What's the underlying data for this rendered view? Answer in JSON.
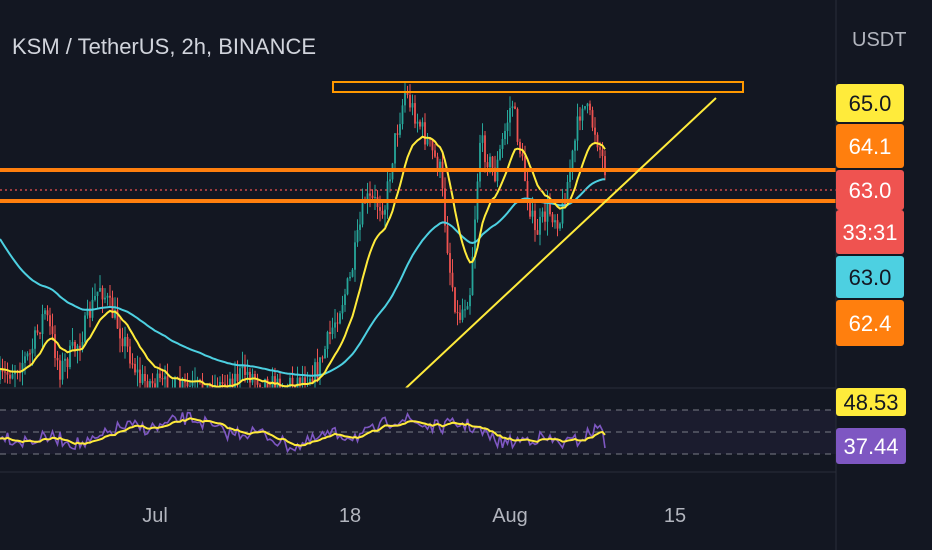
{
  "header": {
    "symbol_title": "KSM / TetherUS, 2h, BINANCE",
    "currency": "USDT"
  },
  "colors": {
    "background": "#131722",
    "candle_up": "#26a69a",
    "candle_down": "#ef5350",
    "ema_fast": "#ffeb3b",
    "ema_slow": "#4dd0e1",
    "zone": "#ff7f0e",
    "trendline": "#ffeb3b",
    "rsi_line": "#7e57c2",
    "rsi_ma": "#ffeb3b"
  },
  "chart_data": [
    {
      "type": "candlestick",
      "symbol": "KSM / TetherUS",
      "timeframe": "2h",
      "exchange": "BINANCE",
      "x_tick_labels": [
        "Jul",
        "18",
        "Aug",
        "15"
      ],
      "price_labels": [
        {
          "value": "65.0",
          "color": "#ffeb3b",
          "text_color": "#131722"
        },
        {
          "value": "64.1",
          "color": "#ff7f0e",
          "text_color": "#ffffff"
        },
        {
          "value": "63.0",
          "color": "#ef5350",
          "text_color": "#ffffff"
        },
        {
          "value": "33:31",
          "color": "#ef5350",
          "text_color": "#ffffff"
        },
        {
          "value": "63.0",
          "color": "#4dd0e1",
          "text_color": "#131722"
        },
        {
          "value": "62.4",
          "color": "#ff7f0e",
          "text_color": "#ffffff"
        }
      ],
      "annotations": {
        "resistance_box": "top horizontal zone",
        "support_zone": "double horizontal band around current price",
        "ascending_trendline": "rising support line"
      }
    },
    {
      "type": "line",
      "indicator": "RSI",
      "value_labels": [
        {
          "value": "48.53",
          "color": "#ffeb3b",
          "text_color": "#131722"
        },
        {
          "value": "37.44",
          "color": "#7e57c2",
          "text_color": "#ffffff"
        }
      ]
    }
  ]
}
